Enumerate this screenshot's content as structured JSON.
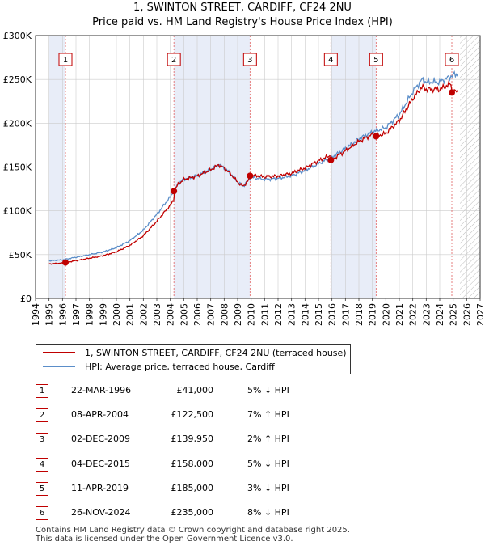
{
  "title": "1, SWINTON STREET, CARDIFF, CF24 2NU",
  "subtitle": "Price paid vs. HM Land Registry's House Price Index (HPI)",
  "chart_data": {
    "type": "line",
    "xlim": [
      1994,
      2027
    ],
    "ylim": [
      0,
      300000
    ],
    "x_ticks": [
      "1994",
      "1995",
      "1996",
      "1997",
      "1998",
      "1999",
      "2000",
      "2001",
      "2002",
      "2003",
      "2004",
      "2005",
      "2006",
      "2007",
      "2008",
      "2009",
      "2010",
      "2011",
      "2012",
      "2013",
      "2014",
      "2015",
      "2016",
      "2017",
      "2018",
      "2019",
      "2020",
      "2021",
      "2022",
      "2023",
      "2024",
      "2025",
      "2026",
      "2027"
    ],
    "y_ticks": [
      {
        "value": 0,
        "label": "£0"
      },
      {
        "value": 50000,
        "label": "£50K"
      },
      {
        "value": 100000,
        "label": "£100K"
      },
      {
        "value": 150000,
        "label": "£150K"
      },
      {
        "value": 200000,
        "label": "£200K"
      },
      {
        "value": 250000,
        "label": "£250K"
      },
      {
        "value": 300000,
        "label": "£300K"
      }
    ],
    "data_start_year": 1995,
    "data_end_year": 2025.5,
    "sales": [
      {
        "id": "1",
        "year": 1996.22,
        "price": 41000
      },
      {
        "id": "2",
        "year": 2004.27,
        "price": 122500
      },
      {
        "id": "3",
        "year": 2009.92,
        "price": 139950
      },
      {
        "id": "4",
        "year": 2015.92,
        "price": 158000
      },
      {
        "id": "5",
        "year": 2019.28,
        "price": 185000
      },
      {
        "id": "6",
        "year": 2024.9,
        "price": 235000
      }
    ],
    "hpi_anchors": [
      [
        1995,
        43000
      ],
      [
        1996,
        44000
      ],
      [
        1997,
        47000
      ],
      [
        1998,
        50000
      ],
      [
        1999,
        53000
      ],
      [
        2000,
        58000
      ],
      [
        2001,
        66000
      ],
      [
        2002,
        78000
      ],
      [
        2003,
        96000
      ],
      [
        2003.6,
        108000
      ],
      [
        2004,
        116000
      ],
      [
        2004.6,
        131000
      ],
      [
        2005,
        136000
      ],
      [
        2006,
        140000
      ],
      [
        2007,
        147000
      ],
      [
        2007.6,
        153000
      ],
      [
        2008,
        149000
      ],
      [
        2008.5,
        142000
      ],
      [
        2009,
        133000
      ],
      [
        2009.4,
        128000
      ],
      [
        2009.9,
        137000
      ],
      [
        2010,
        138000
      ],
      [
        2011,
        136000
      ],
      [
        2012,
        137000
      ],
      [
        2013,
        140000
      ],
      [
        2014,
        146000
      ],
      [
        2015,
        154000
      ],
      [
        2016,
        161000
      ],
      [
        2017,
        171000
      ],
      [
        2018,
        182000
      ],
      [
        2019,
        190000
      ],
      [
        2020,
        195000
      ],
      [
        2021,
        210000
      ],
      [
        2022,
        236000
      ],
      [
        2022.7,
        250000
      ],
      [
        2023,
        247000
      ],
      [
        2024,
        247000
      ],
      [
        2025,
        255000
      ],
      [
        2025.4,
        256000
      ]
    ],
    "series": [
      {
        "name": "1, SWINTON STREET, CARDIFF, CF24 2NU (terraced house)",
        "color": "#c00000"
      },
      {
        "name": "HPI: Average price, terraced house, Cardiff",
        "color": "#5b8ec9"
      }
    ]
  },
  "legend": {
    "property_label": "1, SWINTON STREET, CARDIFF, CF24 2NU (terraced house)",
    "hpi_label": "HPI: Average price, terraced house, Cardiff"
  },
  "transactions": [
    {
      "num": "1",
      "date": "22-MAR-1996",
      "price": "£41,000",
      "hpi": "5% ↓ HPI"
    },
    {
      "num": "2",
      "date": "08-APR-2004",
      "price": "£122,500",
      "hpi": "7% ↑ HPI"
    },
    {
      "num": "3",
      "date": "02-DEC-2009",
      "price": "£139,950",
      "hpi": "2% ↑ HPI"
    },
    {
      "num": "4",
      "date": "04-DEC-2015",
      "price": "£158,000",
      "hpi": "5% ↓ HPI"
    },
    {
      "num": "5",
      "date": "11-APR-2019",
      "price": "£185,000",
      "hpi": "3% ↓ HPI"
    },
    {
      "num": "6",
      "date": "26-NOV-2024",
      "price": "£235,000",
      "hpi": "8% ↓ HPI"
    }
  ],
  "footer": {
    "line1": "Contains HM Land Registry data © Crown copyright and database right 2025.",
    "line2": "This data is licensed under the Open Government Licence v3.0."
  },
  "colors": {
    "property_line": "#c00000",
    "hpi_line": "#5b8ec9",
    "shade": "#e8edf8",
    "grid": "#cccccc"
  }
}
